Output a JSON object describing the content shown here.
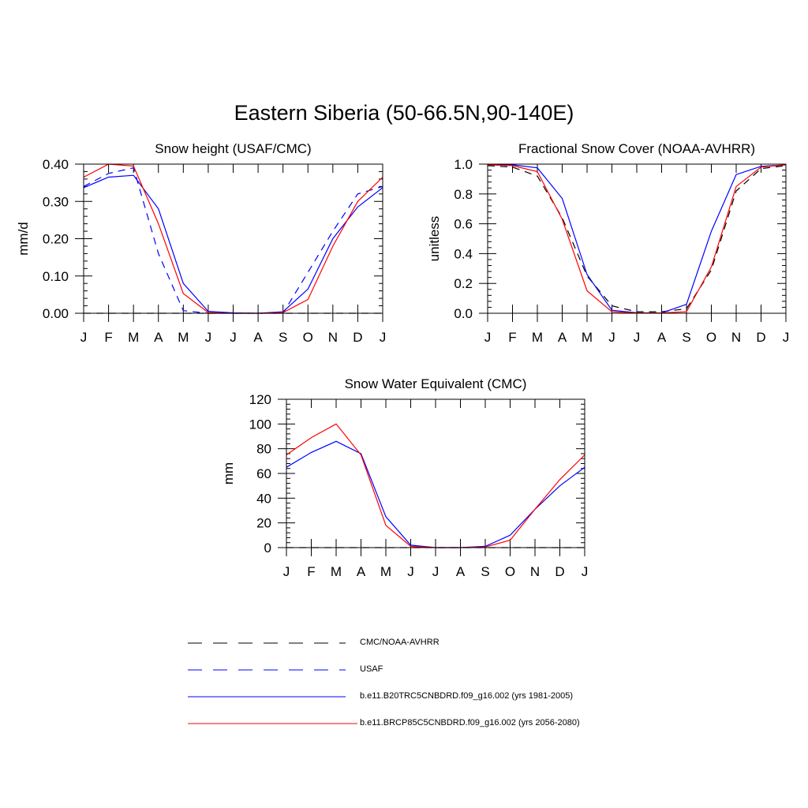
{
  "page": {
    "title": "Eastern Siberia (50-66.5N,90-140E)"
  },
  "styles": {
    "obs": {
      "color": "#000000",
      "dash": "9,7"
    },
    "usaf": {
      "color": "#0000ff",
      "dash": "9,7"
    },
    "hist": {
      "color": "#0000ff",
      "dash": ""
    },
    "future": {
      "color": "#ff0000",
      "dash": ""
    }
  },
  "chart_data": [
    {
      "type": "line",
      "title": "Snow height (USAF/CMC)",
      "ylabel": "mm/d",
      "categories": [
        "J",
        "F",
        "M",
        "A",
        "M",
        "J",
        "J",
        "A",
        "S",
        "O",
        "N",
        "D",
        "J"
      ],
      "ylim": [
        0,
        0.4
      ],
      "yticks": [
        "0.00",
        "0.10",
        "0.20",
        "0.30",
        "0.40"
      ],
      "ytick_values": [
        0,
        0.1,
        0.2,
        0.3,
        0.4
      ],
      "series": [
        {
          "style": "obs",
          "values": [
            0,
            0,
            0,
            0,
            0,
            0,
            0,
            0,
            0,
            0,
            0,
            0,
            0
          ]
        },
        {
          "style": "usaf",
          "values": [
            0.34,
            0.375,
            0.39,
            0.16,
            0.007,
            0,
            0,
            0,
            0,
            0.11,
            0.22,
            0.32,
            0.34
          ]
        },
        {
          "style": "hist",
          "values": [
            0.337,
            0.365,
            0.37,
            0.28,
            0.08,
            0.005,
            0.001,
            0,
            0.004,
            0.065,
            0.2,
            0.285,
            0.337
          ]
        },
        {
          "style": "future",
          "values": [
            0.365,
            0.4,
            0.395,
            0.24,
            0.053,
            0.002,
            0,
            0,
            0.002,
            0.037,
            0.18,
            0.3,
            0.365
          ]
        }
      ]
    },
    {
      "type": "line",
      "title": "Fractional Snow Cover (NOAA-AVHRR)",
      "ylabel": "unitless",
      "categories": [
        "J",
        "F",
        "M",
        "A",
        "M",
        "J",
        "J",
        "A",
        "S",
        "O",
        "N",
        "D",
        "J"
      ],
      "ylim": [
        0,
        1.0
      ],
      "yticks": [
        "0.0",
        "0.2",
        "0.4",
        "0.6",
        "0.8",
        "1.0"
      ],
      "ytick_values": [
        0,
        0.2,
        0.4,
        0.6,
        0.8,
        1.0
      ],
      "series": [
        {
          "style": "obs",
          "values": [
            0.99,
            0.98,
            0.92,
            0.64,
            0.25,
            0.05,
            0.01,
            0.01,
            0.03,
            0.29,
            0.82,
            0.97,
            0.99
          ]
        },
        {
          "style": "hist",
          "values": [
            0.995,
            0.995,
            0.975,
            0.77,
            0.26,
            0.02,
            0.003,
            0.002,
            0.06,
            0.55,
            0.93,
            0.985,
            0.995
          ]
        },
        {
          "style": "future",
          "values": [
            0.995,
            0.99,
            0.95,
            0.63,
            0.15,
            0.01,
            0.002,
            0.002,
            0.01,
            0.31,
            0.85,
            0.98,
            0.995
          ]
        }
      ]
    },
    {
      "type": "line",
      "title": "Snow Water Equivalent (CMC)",
      "ylabel": "mm",
      "categories": [
        "J",
        "F",
        "M",
        "A",
        "M",
        "J",
        "J",
        "A",
        "S",
        "O",
        "N",
        "D",
        "J"
      ],
      "ylim": [
        0,
        120
      ],
      "yticks": [
        "0",
        "20",
        "40",
        "60",
        "80",
        "100",
        "120"
      ],
      "ytick_values": [
        0,
        20,
        40,
        60,
        80,
        100,
        120
      ],
      "series": [
        {
          "style": "obs",
          "values": [
            0,
            0,
            0,
            0,
            0,
            0,
            0,
            0,
            0,
            0,
            0,
            0,
            0
          ]
        },
        {
          "style": "hist",
          "values": [
            65,
            77,
            86,
            76,
            25,
            2,
            0,
            0,
            1,
            10,
            31,
            50,
            65
          ]
        },
        {
          "style": "future",
          "values": [
            75,
            89,
            100,
            75,
            18,
            1,
            0,
            0,
            0.5,
            6,
            31,
            55,
            75
          ]
        }
      ]
    }
  ],
  "legend": [
    {
      "style": "obs",
      "label": "CMC/NOAA-AVHRR"
    },
    {
      "style": "usaf",
      "label": "USAF"
    },
    {
      "style": "hist",
      "label": "b.e11.B20TRC5CNBDRD.f09_g16.002 (yrs 1981-2005)"
    },
    {
      "style": "future",
      "label": "b.e11.BRCP85C5CNBDRD.f09_g16.002 (yrs 2056-2080)"
    }
  ]
}
